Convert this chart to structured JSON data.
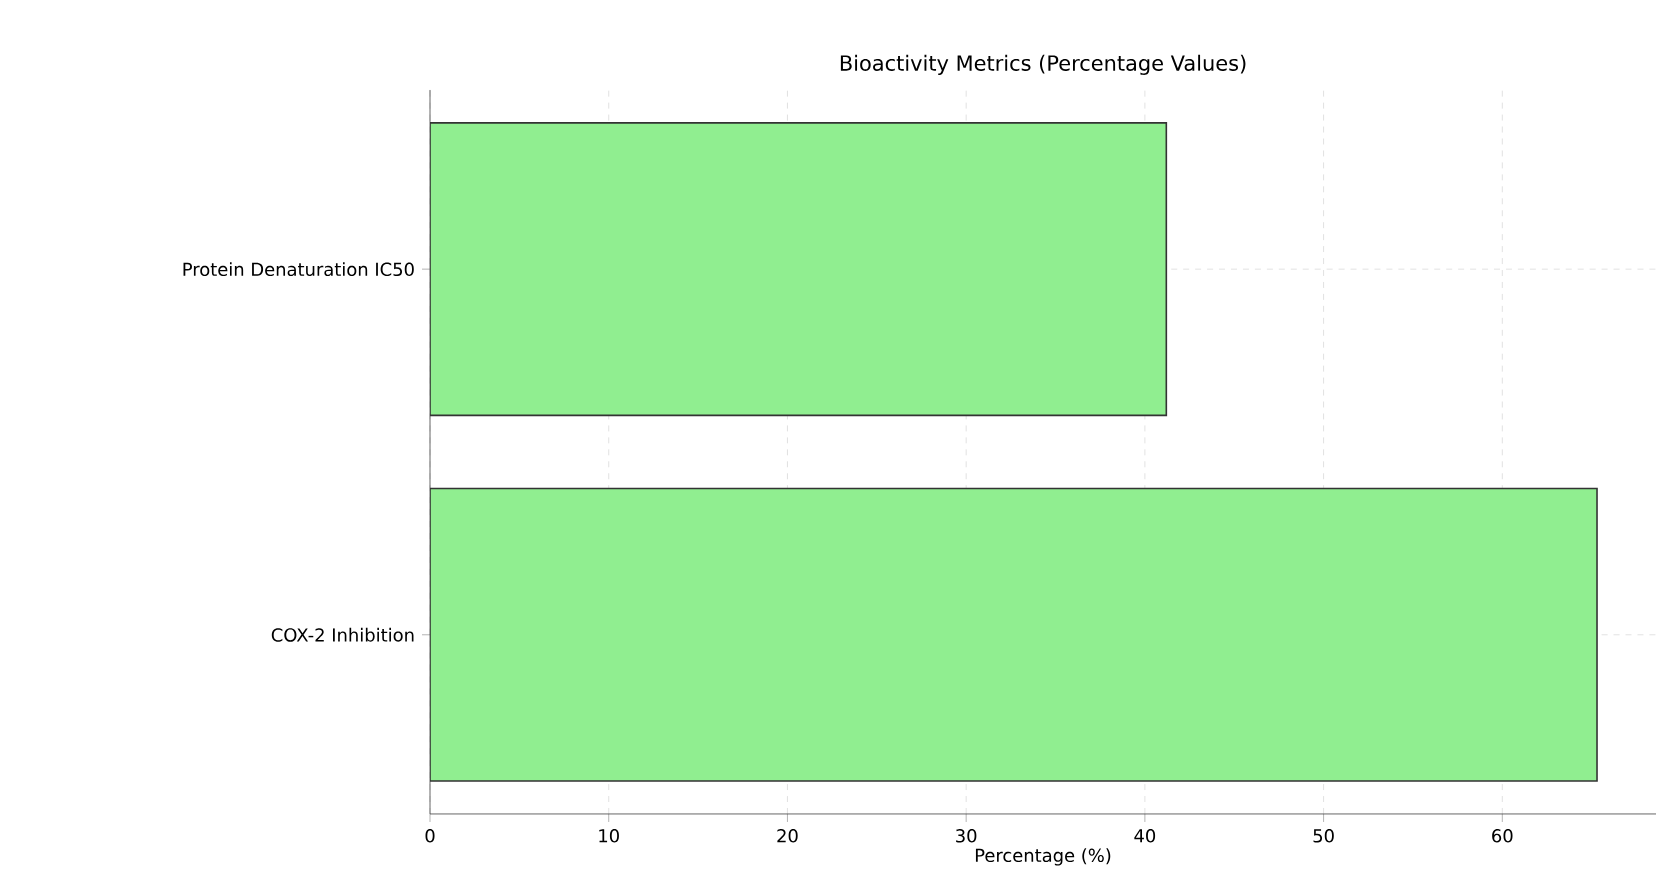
{
  "chart_data": {
    "type": "bar",
    "orientation": "horizontal",
    "title": "Bioactivity Metrics (Percentage Values)",
    "xlabel": "Percentage (%)",
    "categories": [
      "Protein Denaturation IC50",
      "COX-2 Inhibition"
    ],
    "values": [
      41.2,
      65.3
    ],
    "color": "#90ee90",
    "xlim": [
      0,
      68.6
    ],
    "xticks": [
      0,
      10,
      20,
      30,
      40,
      50,
      60
    ],
    "grid": true
  }
}
